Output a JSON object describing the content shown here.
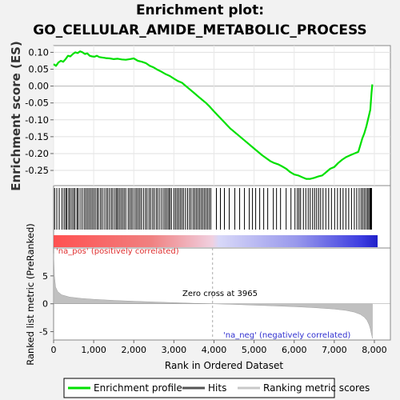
{
  "header": {
    "title_line1": "Enrichment plot:",
    "title_line2": "GO_CELLULAR_AMIDE_METABOLIC_PROCESS"
  },
  "chart_data": {
    "type": "line",
    "top_panel": {
      "ylabel": "Enrichment score (ES)",
      "ylim": [
        -0.295,
        0.12
      ],
      "yticks": [
        "0.10",
        "0.05",
        "0.00",
        "-0.05",
        "-0.10",
        "-0.15",
        "-0.20",
        "-0.25"
      ],
      "ytick_values": [
        0.1,
        0.05,
        0.0,
        -0.05,
        -0.1,
        -0.15,
        -0.2,
        -0.25
      ],
      "series": [
        {
          "name": "Enrichment profile",
          "color": "#00e000",
          "x": [
            0,
            60,
            120,
            180,
            240,
            300,
            360,
            420,
            480,
            540,
            600,
            660,
            720,
            780,
            840,
            900,
            960,
            1020,
            1080,
            1140,
            1200,
            1300,
            1400,
            1500,
            1600,
            1700,
            1800,
            1900,
            2000,
            2100,
            2200,
            2300,
            2400,
            2500,
            2600,
            2700,
            2800,
            2900,
            3000,
            3100,
            3200,
            3300,
            3400,
            3500,
            3600,
            3700,
            3800,
            3900,
            4000,
            4200,
            4400,
            4600,
            4800,
            5000,
            5200,
            5400,
            5500,
            5600,
            5700,
            5800,
            5900,
            6000,
            6100,
            6200,
            6300,
            6400,
            6500,
            6600,
            6700,
            6800,
            6900,
            7000,
            7100,
            7200,
            7300,
            7400,
            7500,
            7600,
            7650,
            7700,
            7750,
            7800,
            7850,
            7900,
            7930,
            7950
          ],
          "y": [
            0.065,
            0.06,
            0.07,
            0.075,
            0.072,
            0.08,
            0.09,
            0.088,
            0.095,
            0.1,
            0.098,
            0.103,
            0.1,
            0.095,
            0.097,
            0.09,
            0.088,
            0.087,
            0.09,
            0.086,
            0.085,
            0.083,
            0.082,
            0.08,
            0.081,
            0.079,
            0.078,
            0.08,
            0.082,
            0.075,
            0.072,
            0.068,
            0.06,
            0.055,
            0.048,
            0.042,
            0.035,
            0.03,
            0.022,
            0.015,
            0.01,
            0.0,
            -0.01,
            -0.02,
            -0.03,
            -0.04,
            -0.05,
            -0.062,
            -0.075,
            -0.1,
            -0.125,
            -0.145,
            -0.165,
            -0.185,
            -0.205,
            -0.222,
            -0.228,
            -0.232,
            -0.238,
            -0.245,
            -0.255,
            -0.262,
            -0.265,
            -0.27,
            -0.275,
            -0.275,
            -0.272,
            -0.268,
            -0.265,
            -0.255,
            -0.245,
            -0.24,
            -0.228,
            -0.218,
            -0.21,
            -0.205,
            -0.2,
            -0.195,
            -0.175,
            -0.155,
            -0.14,
            -0.12,
            -0.095,
            -0.07,
            -0.02,
            0.005
          ]
        }
      ]
    },
    "hits_x": [
      25,
      80,
      140,
      210,
      260,
      300,
      330,
      375,
      410,
      455,
      495,
      530,
      580,
      610,
      660,
      710,
      760,
      800,
      840,
      880,
      920,
      960,
      1000,
      1040,
      1085,
      1120,
      1170,
      1210,
      1260,
      1310,
      1350,
      1395,
      1440,
      1480,
      1530,
      1570,
      1600,
      1640,
      1680,
      1720,
      1760,
      1800,
      1860,
      1900,
      1940,
      1980,
      2030,
      2070,
      2110,
      2150,
      2190,
      2240,
      2290,
      2330,
      2380,
      2420,
      2470,
      2510,
      2560,
      2600,
      2650,
      2700,
      2750,
      2790,
      2830,
      2870,
      2900,
      2940,
      3000,
      3040,
      3080,
      3120,
      3160,
      3200,
      3240,
      3290,
      3340,
      3390,
      3430,
      3480,
      3520,
      3560,
      3600,
      3640,
      3680,
      3720,
      3760,
      3800,
      3840,
      3880,
      3920,
      4060,
      4160,
      4260,
      4380,
      4520,
      4640,
      4760,
      4880,
      4960,
      5040,
      5140,
      5240,
      5340,
      5480,
      5560,
      5660,
      5800,
      5920,
      6020,
      6080,
      6120,
      6160,
      6230,
      6290,
      6350,
      6400,
      6460,
      6510,
      6560,
      6610,
      6660,
      6720,
      6790,
      6860,
      6930,
      7010,
      7080,
      7150,
      7220,
      7290,
      7360,
      7430,
      7500,
      7560,
      7620,
      7670,
      7710,
      7750,
      7790,
      7830,
      7860,
      7890,
      7910,
      7930
    ],
    "bottom_panel": {
      "ylabel": "Ranked list metric (PreRanked)",
      "ylim": [
        -6.5,
        10
      ],
      "yticks": [
        "5",
        "0",
        "-5"
      ],
      "ytick_values": [
        5,
        0,
        -5
      ],
      "pos_label": "'na_pos' (positively correlated)",
      "neg_label": "'na_neg' (negatively correlated)",
      "zero_cross_label": "Zero cross at 3965",
      "zero_cross_x": 3965,
      "metric_x": [
        0,
        20,
        50,
        100,
        200,
        400,
        700,
        1000,
        1500,
        2000,
        2500,
        3000,
        3500,
        3965,
        4500,
        5000,
        5500,
        6000,
        6500,
        7000,
        7300,
        7500,
        7650,
        7750,
        7820,
        7870,
        7900,
        7920,
        7940,
        7950
      ],
      "metric_y": [
        9.0,
        5.0,
        3.0,
        2.2,
        1.6,
        1.2,
        0.95,
        0.8,
        0.6,
        0.45,
        0.32,
        0.2,
        0.08,
        0.0,
        -0.12,
        -0.25,
        -0.38,
        -0.52,
        -0.7,
        -0.95,
        -1.2,
        -1.5,
        -1.9,
        -2.4,
        -3.0,
        -3.8,
        -4.5,
        -5.2,
        -5.8,
        -6.2
      ]
    },
    "xaxis": {
      "xlabel": "Rank in Ordered Dataset",
      "xlim": [
        0,
        8400
      ],
      "xticks": [
        "0",
        "1,000",
        "2,000",
        "3,000",
        "4,000",
        "5,000",
        "6,000",
        "7,000",
        "8,000"
      ],
      "xtick_values": [
        0,
        1000,
        2000,
        3000,
        4000,
        5000,
        6000,
        7000,
        8000
      ],
      "n_genes": 7950
    },
    "legend": {
      "placement": "bottom",
      "items": [
        {
          "label": "Enrichment profile",
          "color": "#00e000"
        },
        {
          "label": "Hits",
          "color": "#555555"
        },
        {
          "label": "Ranking metric scores",
          "color": "#c8c8c8"
        }
      ]
    },
    "colors": {
      "profile": "#00e000",
      "pos_text": "#e03030",
      "neg_text": "#3030d0",
      "metric_fill": "#c0c0c0"
    }
  }
}
